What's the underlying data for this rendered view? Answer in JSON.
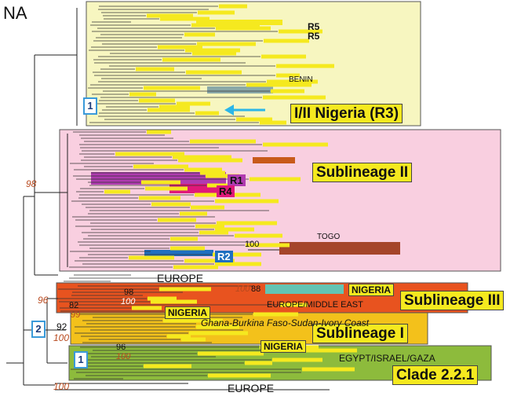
{
  "panel_label": "NA",
  "colors": {
    "nigeria_r3_clade": "#f7f6c0",
    "sublineage_ii_clade": "#f9cfe0",
    "sublineage_iii_clade": "#e8531f",
    "sublineage_i_clade": "#f3c11b",
    "clade_221": "#8dbb3c",
    "label_yellow": "#f5e91f",
    "arrow": "#2bb6e8",
    "bootstrap": "#b84a1f",
    "r1": "#b03bb0",
    "r4": "#e0187a",
    "r2": "#1f6fc0",
    "togo": "#a5452a",
    "nigeria_iii": "#63c4b3",
    "benin": "#8aa9a8"
  },
  "clade_labels": {
    "nigeria_r3": "I/II Nigeria (R3)",
    "sublineage_ii": "Sublineage II",
    "sublineage_iii": "Sublineage III",
    "sublineage_i": "Sublineage I",
    "clade_221": "Clade 2.2.1"
  },
  "subgroup_labels": {
    "r5a": "R5",
    "r5b": "R5",
    "r1": "R1",
    "r4": "R4",
    "r2": "R2"
  },
  "region_labels": {
    "benin": "BENIN",
    "togo": "TOGO",
    "europe_top": "EUROPE",
    "nigeria_iii": "NIGERIA",
    "europe_middle_east": "EUROPE/MIDDLE EAST",
    "nigeria_i": "NIGERIA",
    "ghana": "Ghana-Burkina Faso-Sudan-Ivory Coast",
    "nigeria_221": "NIGERIA",
    "egypt": "EGYPT/ISRAEL/GAZA",
    "europe_bottom": "EUROPE"
  },
  "bootstrap_values": {
    "b98": "98",
    "b100_togo": "100",
    "b96": "96",
    "b98b": "98",
    "b100a": "100",
    "b100b": "100",
    "b88": "88",
    "b82": "82",
    "b99": "99",
    "b92": "92",
    "b100c": "100",
    "b96b": "96",
    "b100d": "100",
    "b100e": "100"
  },
  "numbered_boxes": {
    "box_nigeria": "1",
    "box_2": "2",
    "box_221": "1"
  }
}
